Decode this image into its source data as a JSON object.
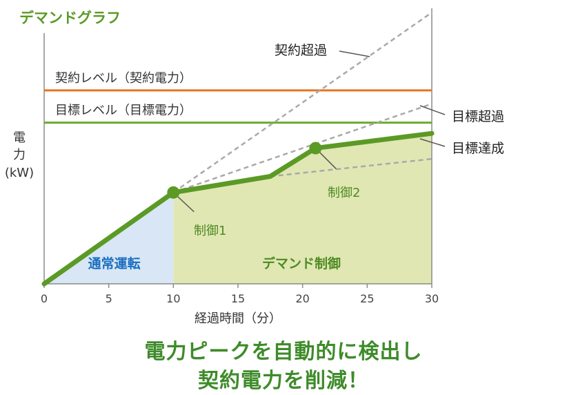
{
  "chart_data": {
    "type": "line",
    "title": "デマンドグラフ",
    "xlabel": "経過時間（分）",
    "ylabel": [
      "電",
      "力",
      "(kW)"
    ],
    "xlim": [
      0,
      30
    ],
    "xticks": [
      0,
      5,
      10,
      15,
      20,
      25,
      30
    ],
    "ylim": [
      0,
      100
    ],
    "grid": false,
    "reference_lines": [
      {
        "label": "契約レベル（契約電力）",
        "y": 72,
        "color": "#e8731e"
      },
      {
        "label": "目標レベル（目標電力）",
        "y": 60,
        "color": "#6aab2e"
      }
    ],
    "series": [
      {
        "name": "目標達成",
        "x": [
          0,
          10,
          17.5,
          21,
          30
        ],
        "y": [
          0,
          34,
          40,
          50.5,
          56
        ],
        "style": "solid",
        "color": "#5b9a25"
      },
      {
        "name": "契約超過",
        "x": [
          10,
          30
        ],
        "y": [
          34,
          101
        ],
        "style": "dashed",
        "color": "#a9a9a9"
      },
      {
        "name": "目標超過",
        "x": [
          10,
          30
        ],
        "y": [
          34,
          67
        ],
        "style": "dashed",
        "color": "#a9a9a9"
      },
      {
        "name": "",
        "x": [
          17.5,
          30
        ],
        "y": [
          40,
          46.5
        ],
        "style": "dashed",
        "color": "#a9a9a9"
      }
    ],
    "control_points": [
      {
        "label": "制御1",
        "x": 10,
        "y": 34
      },
      {
        "label": "制御2",
        "x": 21,
        "y": 50.5
      }
    ],
    "regions": [
      {
        "label": "通常運転",
        "x": [
          0,
          10
        ],
        "color": "#d8e6f5",
        "text_color": "#1a6fc0"
      },
      {
        "label": "デマンド制御",
        "x": [
          10,
          30
        ],
        "color": "#e0e7b3",
        "text_color": "#4e8a22"
      }
    ]
  },
  "caption": {
    "line1": "電力ピークを自動的に検出し",
    "line2": "契約電力を削減！"
  }
}
